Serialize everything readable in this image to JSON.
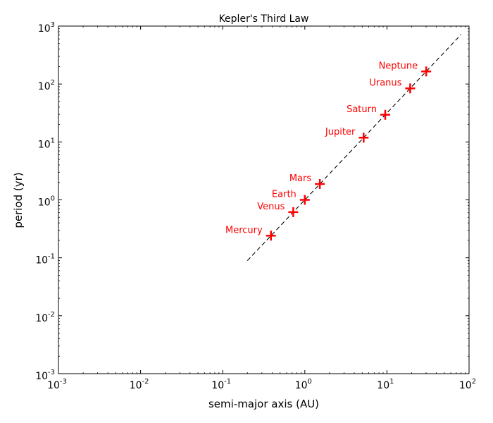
{
  "chart_data": {
    "type": "scatter",
    "title": "Kepler's Third Law",
    "xlabel": "semi-major axis (AU)",
    "ylabel": "period (yr)",
    "xscale": "log",
    "yscale": "log",
    "xlim": [
      0.001,
      100
    ],
    "ylim": [
      0.001,
      1000
    ],
    "x_ticks": [
      {
        "base": "10",
        "exp": "-3",
        "value": 0.001
      },
      {
        "base": "10",
        "exp": "-2",
        "value": 0.01
      },
      {
        "base": "10",
        "exp": "-1",
        "value": 0.1
      },
      {
        "base": "10",
        "exp": "0",
        "value": 1
      },
      {
        "base": "10",
        "exp": "1",
        "value": 10
      },
      {
        "base": "10",
        "exp": "2",
        "value": 100
      }
    ],
    "y_ticks": [
      {
        "base": "10",
        "exp": "-3",
        "value": 0.001
      },
      {
        "base": "10",
        "exp": "-2",
        "value": 0.01
      },
      {
        "base": "10",
        "exp": "-1",
        "value": 0.1
      },
      {
        "base": "10",
        "exp": "0",
        "value": 1
      },
      {
        "base": "10",
        "exp": "1",
        "value": 10
      },
      {
        "base": "10",
        "exp": "2",
        "value": 100
      },
      {
        "base": "10",
        "exp": "3",
        "value": 1000
      }
    ],
    "points": [
      {
        "label": "Mercury",
        "x": 0.387,
        "y": 0.241
      },
      {
        "label": "Venus",
        "x": 0.723,
        "y": 0.615
      },
      {
        "label": "Earth",
        "x": 1.0,
        "y": 1.0
      },
      {
        "label": "Mars",
        "x": 1.524,
        "y": 1.881
      },
      {
        "label": "Jupiter",
        "x": 5.203,
        "y": 11.86
      },
      {
        "label": "Saturn",
        "x": 9.537,
        "y": 29.46
      },
      {
        "label": "Uranus",
        "x": 19.19,
        "y": 84.01
      },
      {
        "label": "Neptune",
        "x": 30.07,
        "y": 164.8
      }
    ],
    "fit_line": {
      "x": [
        0.2,
        80
      ],
      "y": [
        0.0894,
        715.5
      ],
      "style": "dashed"
    },
    "marker": "plus",
    "colors": {
      "points": "#ff0000",
      "labels": "#ff0000",
      "fit_line": "#000000",
      "axes": "#000000"
    },
    "grid": false,
    "legend": "none"
  }
}
